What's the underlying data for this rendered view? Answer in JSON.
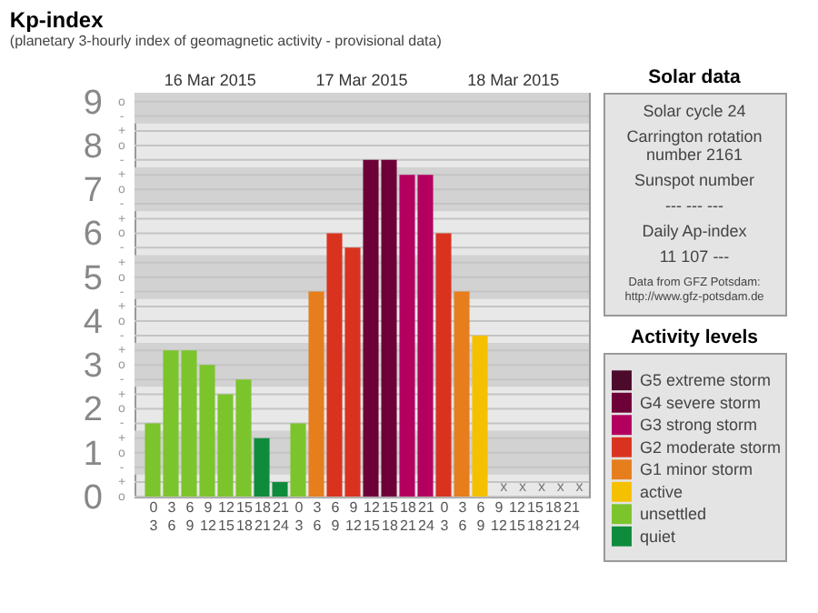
{
  "chart_data": [
    {
      "type": "bar",
      "title": "Kp-index",
      "subtitle": "(planetary 3-hourly index of geomagnetic activity - provisional data)",
      "categories": [
        "0\n3",
        "3\n6",
        "6\n9",
        "9\n12",
        "12\n15",
        "15\n18",
        "18\n21",
        "21\n24",
        "0\n3",
        "3\n6",
        "6\n9",
        "9\n12",
        "12\n15",
        "15\n18",
        "18\n21",
        "21\n24",
        "0\n3",
        "3\n6",
        "6\n9",
        "9\n12",
        "12\n15",
        "15\n18",
        "18\n21",
        "21\n24"
      ],
      "series": [
        {
          "name": "G5 extreme storm",
          "color": "#4d0b2c",
          "values": [
            null,
            null,
            null,
            null,
            null,
            null,
            null,
            null,
            null,
            null,
            null,
            null,
            null,
            null,
            null,
            null,
            null,
            null,
            null,
            null,
            null,
            null,
            null,
            null
          ]
        },
        {
          "name": "G4 severe storm",
          "color": "#6e0038",
          "values": [
            null,
            null,
            null,
            null,
            null,
            null,
            null,
            null,
            null,
            null,
            null,
            null,
            7.67,
            7.67,
            null,
            null,
            null,
            null,
            null,
            null,
            null,
            null,
            null,
            null
          ]
        },
        {
          "name": "G3 strong storm",
          "color": "#b3005f",
          "values": [
            null,
            null,
            null,
            null,
            null,
            null,
            null,
            null,
            null,
            null,
            null,
            null,
            null,
            null,
            7.33,
            7.33,
            null,
            null,
            null,
            null,
            null,
            null,
            null,
            null
          ]
        },
        {
          "name": "G2 moderate storm",
          "color": "#d9331f",
          "values": [
            null,
            null,
            null,
            null,
            null,
            null,
            null,
            null,
            null,
            null,
            6,
            5.67,
            null,
            null,
            null,
            null,
            6,
            null,
            null,
            null,
            null,
            null,
            null,
            null
          ]
        },
        {
          "name": "G1 minor storm",
          "color": "#e67e1e",
          "values": [
            null,
            null,
            null,
            null,
            null,
            null,
            null,
            null,
            null,
            4.67,
            null,
            null,
            null,
            null,
            null,
            null,
            null,
            4.67,
            null,
            null,
            null,
            null,
            null,
            null
          ]
        },
        {
          "name": "active",
          "color": "#f5c000",
          "values": [
            null,
            null,
            null,
            null,
            null,
            null,
            null,
            null,
            null,
            null,
            null,
            null,
            null,
            null,
            null,
            null,
            null,
            null,
            3.67,
            null,
            null,
            null,
            null,
            null
          ]
        },
        {
          "name": "unsettled",
          "color": "#7cc42c",
          "values": [
            1.67,
            3.33,
            3.33,
            3,
            2.33,
            2.67,
            null,
            null,
            1.67,
            null,
            null,
            null,
            null,
            null,
            null,
            null,
            null,
            null,
            null,
            null,
            null,
            null,
            null,
            null
          ]
        },
        {
          "name": "quiet",
          "color": "#0e8c3c",
          "values": [
            null,
            null,
            null,
            null,
            null,
            null,
            1.33,
            0.33,
            null,
            null,
            null,
            null,
            null,
            null,
            null,
            null,
            null,
            null,
            null,
            null,
            null,
            null,
            null,
            null
          ]
        }
      ],
      "value_labels": [
        null,
        null,
        null,
        null,
        null,
        null,
        null,
        null,
        null,
        null,
        null,
        null,
        null,
        null,
        null,
        null,
        null,
        null,
        null,
        "x",
        "x",
        "x",
        "x",
        "x"
      ],
      "annotations": [
        "16 Mar 2015",
        "17 Mar 2015",
        "18 Mar 2015",
        "o",
        "+",
        "-",
        "o",
        "+",
        "-",
        "o",
        "+",
        "-",
        "o",
        "+",
        "-",
        "o",
        "+",
        "-",
        "o",
        "+",
        "-",
        "o",
        "+",
        "-",
        "o",
        "+",
        "-",
        "o",
        "+",
        "-",
        "o"
      ],
      "ylim": [
        0,
        9.2
      ],
      "yticks": [
        0,
        {
          "value": 0.33,
          "label": null
        },
        {
          "value": 0.67,
          "label": null
        },
        1,
        {
          "value": 1.33,
          "label": null
        },
        {
          "value": 1.67,
          "label": null
        },
        2,
        {
          "value": 2.33,
          "label": null
        },
        {
          "value": 2.67,
          "label": null
        },
        3,
        {
          "value": 3.33,
          "label": null
        },
        {
          "value": 3.67,
          "label": null
        },
        4,
        {
          "value": 4.33,
          "label": null
        },
        {
          "value": 4.67,
          "label": null
        },
        5,
        {
          "value": 5.33,
          "label": null
        },
        {
          "value": 5.67,
          "label": null
        },
        6,
        {
          "value": 6.33,
          "label": null
        },
        {
          "value": 6.67,
          "label": null
        },
        7,
        {
          "value": 7.33,
          "label": null
        },
        {
          "value": 7.67,
          "label": null
        },
        8,
        {
          "value": 8.33,
          "label": null
        },
        {
          "value": 8.67,
          "label": null
        },
        9
      ],
      "bands": [
        {
          "axis": "y",
          "from": 0.5,
          "to": 1.5,
          "color": "#d2d2d2"
        },
        {
          "axis": "y",
          "from": 2.5,
          "to": 3.5,
          "color": "#d2d2d2"
        },
        {
          "axis": "y",
          "from": 4.5,
          "to": 5.5,
          "color": "#d2d2d2"
        },
        {
          "axis": "y",
          "from": 6.5,
          "to": 7.5,
          "color": "#d2d2d2"
        },
        {
          "axis": "y",
          "from": 8.5,
          "to": 9.2,
          "color": "#d2d2d2"
        }
      ],
      "grid": "y",
      "legend": "right",
      "legend_title": "Activity levels"
    },
    {
      "type": "other",
      "title": "Solar data",
      "annotations": [
        "Solar cycle 24",
        "Carrington rotation number 2161",
        "Sunspot number",
        "---   ---   ---",
        "Daily Ap-index",
        "11   107   ---",
        "Data from GFZ Potsdam: http://www.gfz-potsdam.de"
      ]
    }
  ]
}
